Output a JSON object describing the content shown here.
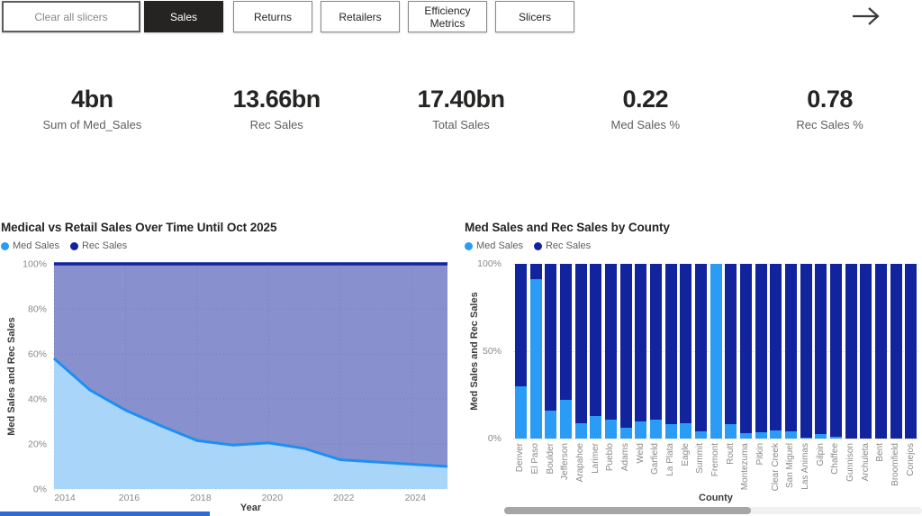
{
  "nav": {
    "buttons": [
      {
        "label": "Clear all slicers",
        "active": false
      },
      {
        "label": "Sales",
        "active": true
      },
      {
        "label": "Returns",
        "active": false
      },
      {
        "label": "Retailers",
        "active": false
      },
      {
        "label": "Efficiency Metrics",
        "active": false
      },
      {
        "label": "Slicers",
        "active": false
      }
    ]
  },
  "kpis": [
    {
      "value": "4bn",
      "label": "Sum of Med_Sales"
    },
    {
      "value": "13.66bn",
      "label": "Rec Sales"
    },
    {
      "value": "17.40bn",
      "label": "Total Sales"
    },
    {
      "value": "0.22",
      "label": "Med Sales %"
    },
    {
      "value": "0.78",
      "label": "Rec Sales %"
    }
  ],
  "colors": {
    "med_blue": "#2B9CF5",
    "rec_navy": "#12239E",
    "med_area_fill": "#A9D5F8",
    "med_line": "#1E8FF2",
    "rec_overlay": "rgba(18,35,158,0.5)",
    "nav_active_bg": "#252423",
    "scrollbar_thumb": "#a6a6a6",
    "bottom_strip": "#2E6BD3"
  },
  "chart_data": [
    {
      "type": "area",
      "title": "Medical vs Retail Sales Over Time Until Oct 2025",
      "xlabel": "Year",
      "ylabel": "Med Sales and Rec Sales",
      "x": [
        2014,
        2015,
        2016,
        2017,
        2018,
        2019,
        2020,
        2021,
        2022,
        2023,
        2024,
        2025
      ],
      "series": [
        {
          "name": "Med Sales",
          "color": "#2B9CF5",
          "values": [
            58,
            44,
            35,
            28,
            21.5,
            19.5,
            20.5,
            18,
            13,
            12,
            11,
            10
          ]
        },
        {
          "name": "Rec Sales",
          "color": "#12239E",
          "values": [
            100,
            100,
            100,
            100,
            100,
            100,
            100,
            100,
            100,
            100,
            100,
            100
          ]
        }
      ],
      "ylim": [
        0,
        100
      ],
      "yticks": [
        "0%",
        "20%",
        "40%",
        "60%",
        "80%",
        "100%"
      ],
      "xticks": [
        2014,
        2016,
        2018,
        2020,
        2022,
        2024
      ],
      "grid": true,
      "legend_position": "top-left"
    },
    {
      "type": "bar",
      "stacked_percent": true,
      "title": "Med Sales and Rec Sales by County",
      "xlabel": "County",
      "ylabel": "Med Sales and Rec Sales",
      "categories": [
        "Denver",
        "El Paso",
        "Boulder",
        "Jefferson",
        "Arapahoe",
        "Larimer",
        "Pueblo",
        "Adams",
        "Weld",
        "Garfield",
        "La Plata",
        "Eagle",
        "Summit",
        "Fremont",
        "Routt",
        "Montezuma",
        "Pitkin",
        "Clear Creek",
        "San Miguel",
        "Las Animas",
        "Gilpin",
        "Chaffee",
        "Gunnison",
        "Archuleta",
        "Bent",
        "Broomfield",
        "Conejos"
      ],
      "series": [
        {
          "name": "Med Sales",
          "color": "#2B9CF5",
          "values": [
            30,
            91,
            16,
            22,
            9,
            13,
            11,
            6,
            10,
            11,
            8,
            9,
            4,
            100,
            8,
            3,
            3.5,
            4.5,
            4,
            0.5,
            2.5,
            1,
            0,
            0,
            0,
            0,
            0
          ]
        },
        {
          "name": "Rec Sales",
          "color": "#12239E",
          "values": [
            70,
            9,
            84,
            78,
            91,
            87,
            89,
            94,
            90,
            89,
            92,
            91,
            96,
            0,
            92,
            97,
            96.5,
            95.5,
            96,
            99.5,
            97.5,
            99,
            100,
            100,
            100,
            100,
            100
          ]
        }
      ],
      "ylim": [
        0,
        100
      ],
      "yticks": [
        "0%",
        "50%",
        "100%"
      ],
      "grid": true,
      "legend_position": "top-left",
      "scrollbar": {
        "thumb_start_frac": 0,
        "thumb_end_frac": 0.59
      }
    }
  ]
}
